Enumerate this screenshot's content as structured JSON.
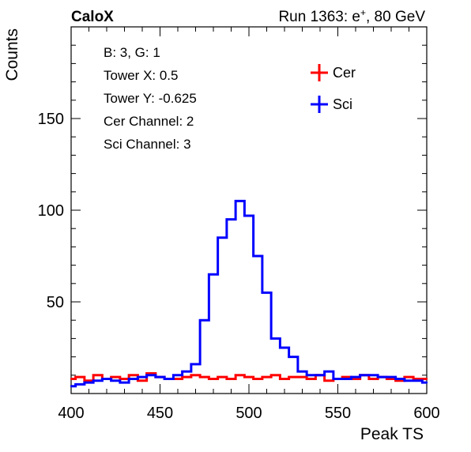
{
  "header": {
    "brand": "CaloX",
    "run_prefix": "Run 1363: e",
    "run_sup": "+",
    "run_suffix": ", 80 GeV"
  },
  "info_box": {
    "lines": [
      "B: 3, G: 1",
      "Tower X: 0.5",
      "Tower Y: -0.625",
      "Cer Channel: 2",
      "Sci Channel: 3"
    ]
  },
  "chart_data": {
    "type": "line",
    "xlabel": "Peak TS",
    "ylabel": "Counts",
    "xlim": [
      400,
      600
    ],
    "ylim": [
      0,
      200
    ],
    "x_ticks": [
      400,
      450,
      500,
      550,
      600
    ],
    "y_ticks": [
      50,
      100,
      150
    ],
    "legend": {
      "placement": "top-right"
    },
    "series": [
      {
        "name": "Cer",
        "color": "#ff0000",
        "style": "step",
        "x": [
          400,
          405,
          410,
          415,
          420,
          425,
          430,
          435,
          440,
          445,
          450,
          455,
          460,
          465,
          470,
          475,
          480,
          485,
          490,
          495,
          500,
          505,
          510,
          515,
          520,
          525,
          530,
          535,
          540,
          545,
          550,
          555,
          560,
          565,
          570,
          575,
          580,
          585,
          590,
          595,
          600
        ],
        "y": [
          8,
          9,
          7,
          10,
          8,
          9,
          8,
          10,
          7,
          11,
          9,
          8,
          8,
          9,
          10,
          9,
          8,
          9,
          8,
          10,
          9,
          8,
          9,
          10,
          8,
          9,
          9,
          8,
          10,
          7,
          8,
          9,
          8,
          10,
          8,
          9,
          8,
          7,
          9,
          8,
          8
        ]
      },
      {
        "name": "Sci",
        "color": "#0000ff",
        "style": "step",
        "x": [
          400,
          405,
          410,
          415,
          420,
          425,
          430,
          435,
          440,
          445,
          450,
          455,
          460,
          465,
          470,
          475,
          480,
          485,
          490,
          495,
          500,
          505,
          510,
          515,
          520,
          525,
          530,
          535,
          540,
          545,
          550,
          555,
          560,
          565,
          570,
          575,
          580,
          585,
          590,
          595,
          600
        ],
        "y": [
          4,
          5,
          6,
          7,
          8,
          7,
          6,
          8,
          9,
          10,
          9,
          8,
          10,
          12,
          16,
          40,
          65,
          85,
          95,
          105,
          97,
          75,
          55,
          30,
          25,
          20,
          12,
          10,
          10,
          12,
          8,
          8,
          9,
          10,
          10,
          9,
          9,
          8,
          7,
          7,
          6
        ]
      }
    ]
  }
}
